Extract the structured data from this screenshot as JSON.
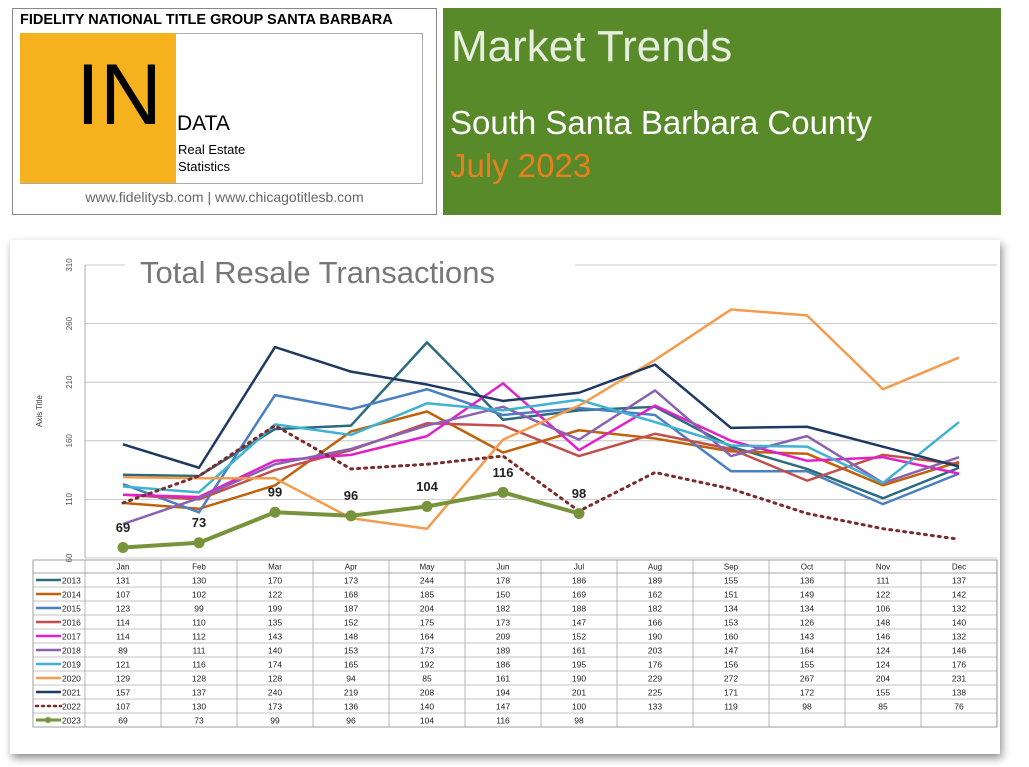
{
  "header": {
    "company": "FIDELITY NATIONAL TITLE GROUP SANTA BARBARA",
    "logo_big": "IN",
    "logo_small": "DATA",
    "subtitle_1": "Real Estate",
    "subtitle_2": "Statistics",
    "websites": "www.fidelitysb.com | www.chicagotitlesb.com",
    "title": "Market Trends",
    "region": "South Santa Barbara County",
    "date": "July 2023"
  },
  "chart_data": {
    "type": "line",
    "title": "Total Resale Transactions",
    "y_axis_label": "Axis Title",
    "categories": [
      "Jan",
      "Feb",
      "Mar",
      "Apr",
      "May",
      "Jun",
      "Jul",
      "Aug",
      "Sep",
      "Oct",
      "Nov",
      "Dec"
    ],
    "ylim": [
      60,
      310
    ],
    "yticks": [
      60,
      110,
      160,
      210,
      260,
      310
    ],
    "grid": true,
    "series": [
      {
        "name": "2013",
        "color": "#2b6b7d",
        "values": [
          131,
          130,
          170,
          173,
          244,
          178,
          186,
          189,
          155,
          136,
          111,
          137
        ]
      },
      {
        "name": "2014",
        "color": "#c0620c",
        "values": [
          107,
          102,
          122,
          168,
          185,
          150,
          169,
          162,
          151,
          149,
          122,
          142
        ]
      },
      {
        "name": "2015",
        "color": "#4a7fc1",
        "values": [
          123,
          99,
          199,
          187,
          204,
          182,
          188,
          182,
          134,
          134,
          106,
          132
        ]
      },
      {
        "name": "2016",
        "color": "#c0504d",
        "values": [
          114,
          110,
          135,
          152,
          175,
          173,
          147,
          166,
          153,
          126,
          148,
          140
        ]
      },
      {
        "name": "2017",
        "color": "#e21fc8",
        "values": [
          114,
          112,
          143,
          148,
          164,
          209,
          152,
          190,
          160,
          143,
          146,
          132
        ]
      },
      {
        "name": "2018",
        "color": "#8a62b2",
        "values": [
          89,
          111,
          140,
          153,
          173,
          189,
          161,
          203,
          147,
          164,
          124,
          146
        ]
      },
      {
        "name": "2019",
        "color": "#3fb2d2",
        "values": [
          121,
          116,
          174,
          165,
          192,
          186,
          195,
          176,
          156,
          155,
          124,
          176
        ]
      },
      {
        "name": "2020",
        "color": "#f39c4e",
        "values": [
          129,
          128,
          128,
          94,
          85,
          161,
          190,
          229,
          272,
          267,
          204,
          231
        ]
      },
      {
        "name": "2021",
        "color": "#1f3a61",
        "values": [
          157,
          137,
          240,
          219,
          208,
          194,
          201,
          225,
          171,
          172,
          155,
          138
        ]
      },
      {
        "name": "2022",
        "color": "#7b2b2b",
        "line_style": "dotted",
        "values": [
          107,
          130,
          173,
          136,
          140,
          147,
          100,
          133,
          119,
          98,
          85,
          76
        ]
      },
      {
        "name": "2023",
        "color": "#77933c",
        "marker": "circle",
        "data_labels": true,
        "values": [
          69,
          73,
          99,
          96,
          104,
          116,
          98,
          null,
          null,
          null,
          null,
          null
        ]
      }
    ]
  }
}
